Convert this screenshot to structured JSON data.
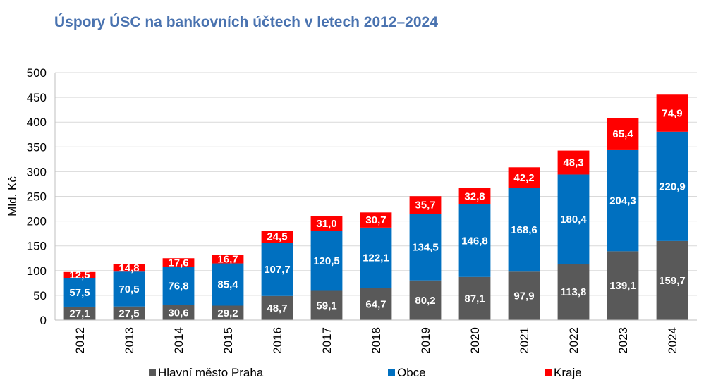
{
  "chart_data": {
    "type": "bar",
    "stacked": true,
    "title": "Úspory ÚSC na bankovních účtech v letech 2012–2024",
    "ylabel": "Mld. Kč",
    "xlabel": "",
    "ylim": [
      0,
      500
    ],
    "yticks": [
      "0",
      "50",
      "100",
      "150",
      "200",
      "250",
      "300",
      "350",
      "400",
      "450",
      "500"
    ],
    "categories": [
      "2012",
      "2013",
      "2014",
      "2015",
      "2016",
      "2017",
      "2018",
      "2019",
      "2020",
      "2021",
      "2022",
      "2023",
      "2024"
    ],
    "grid": true,
    "legend_position": "bottom",
    "series": [
      {
        "name": "Hlavní město Praha",
        "color": "#595959",
        "values": [
          27.1,
          27.5,
          30.6,
          29.2,
          48.7,
          59.1,
          64.7,
          80.2,
          87.1,
          97.9,
          113.8,
          139.1,
          159.7
        ],
        "labels": [
          "27,1",
          "27,5",
          "30,6",
          "29,2",
          "48,7",
          "59,1",
          "64,7",
          "80,2",
          "87,1",
          "97,9",
          "113,8",
          "139,1",
          "159,7"
        ]
      },
      {
        "name": "Obce",
        "color": "#0070c0",
        "values": [
          57.5,
          70.5,
          76.8,
          85.4,
          107.7,
          120.5,
          122.1,
          134.5,
          146.8,
          168.6,
          180.4,
          204.3,
          220.9
        ],
        "labels": [
          "57,5",
          "70,5",
          "76,8",
          "85,4",
          "107,7",
          "120,5",
          "122,1",
          "134,5",
          "146,8",
          "168,6",
          "180,4",
          "204,3",
          "220,9"
        ]
      },
      {
        "name": "Kraje",
        "color": "#ff0000",
        "values": [
          12.5,
          14.8,
          17.6,
          16.7,
          24.5,
          31.0,
          30.7,
          35.7,
          32.8,
          42.2,
          48.3,
          65.4,
          74.9
        ],
        "labels": [
          "12,5",
          "14,8",
          "17,6",
          "16,7",
          "24,5",
          "31,0",
          "30,7",
          "35,7",
          "32,8",
          "42,2",
          "48,3",
          "65,4",
          "74,9"
        ]
      }
    ]
  }
}
